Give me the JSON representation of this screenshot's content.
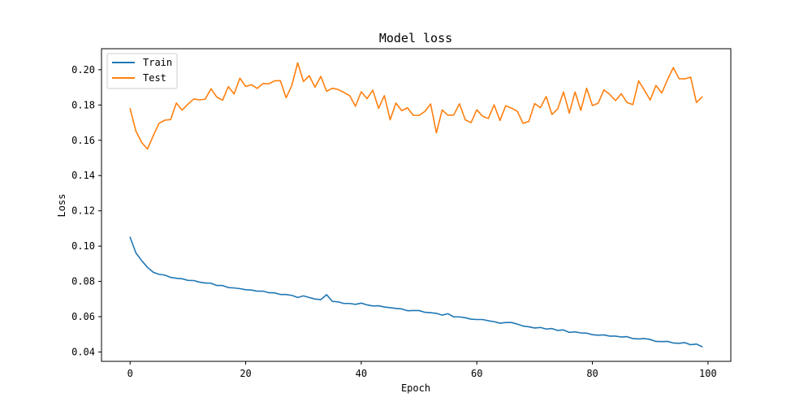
{
  "chart_data": {
    "type": "line",
    "title": "Model loss",
    "xlabel": "Epoch",
    "ylabel": "Loss",
    "xlim": [
      -4.95,
      103.95
    ],
    "ylim": [
      0.0347,
      0.2119
    ],
    "xticks": [
      0,
      20,
      40,
      60,
      80,
      100
    ],
    "xtick_labels": [
      "0",
      "20",
      "40",
      "60",
      "80",
      "100"
    ],
    "yticks": [
      0.04,
      0.06,
      0.08,
      0.1,
      0.12,
      0.14,
      0.16,
      0.18,
      0.2
    ],
    "ytick_labels": [
      "0.04",
      "0.06",
      "0.08",
      "0.10",
      "0.12",
      "0.14",
      "0.16",
      "0.18",
      "0.20"
    ],
    "grid": false,
    "legend_position": "top-left",
    "series": [
      {
        "name": "Train",
        "color": "#1f77b4",
        "values": [
          0.105,
          0.0962,
          0.0918,
          0.088,
          0.0852,
          0.084,
          0.0836,
          0.0823,
          0.0818,
          0.0815,
          0.0806,
          0.0805,
          0.0796,
          0.0791,
          0.079,
          0.0777,
          0.0777,
          0.0765,
          0.0763,
          0.0759,
          0.0753,
          0.0751,
          0.0745,
          0.0745,
          0.0736,
          0.0735,
          0.0726,
          0.0726,
          0.0721,
          0.0709,
          0.0718,
          0.0709,
          0.07,
          0.0697,
          0.0725,
          0.0687,
          0.0684,
          0.0675,
          0.0675,
          0.067,
          0.0677,
          0.0667,
          0.0661,
          0.0662,
          0.0655,
          0.0651,
          0.0647,
          0.0644,
          0.0634,
          0.0635,
          0.0635,
          0.0625,
          0.0623,
          0.0619,
          0.0609,
          0.0617,
          0.0599,
          0.0599,
          0.0594,
          0.0586,
          0.0584,
          0.0584,
          0.0577,
          0.0572,
          0.0563,
          0.0567,
          0.0567,
          0.0558,
          0.0547,
          0.0543,
          0.0536,
          0.0539,
          0.053,
          0.0533,
          0.0522,
          0.0525,
          0.0511,
          0.0514,
          0.0508,
          0.0507,
          0.0498,
          0.0495,
          0.0497,
          0.049,
          0.049,
          0.0485,
          0.0487,
          0.0476,
          0.0474,
          0.0476,
          0.0471,
          0.046,
          0.0459,
          0.046,
          0.0451,
          0.0449,
          0.0453,
          0.0441,
          0.0445,
          0.043
        ]
      },
      {
        "name": "Test",
        "color": "#ff7f0e",
        "values": [
          0.1779,
          0.1652,
          0.1588,
          0.155,
          0.1625,
          0.1696,
          0.1714,
          0.1717,
          0.1811,
          0.1771,
          0.1804,
          0.1834,
          0.1829,
          0.1833,
          0.1892,
          0.1845,
          0.1827,
          0.1904,
          0.1863,
          0.1952,
          0.1905,
          0.1915,
          0.1894,
          0.1922,
          0.192,
          0.1937,
          0.1938,
          0.1841,
          0.1912,
          0.2039,
          0.1933,
          0.1966,
          0.1901,
          0.1962,
          0.1878,
          0.1895,
          0.1888,
          0.1871,
          0.1853,
          0.1793,
          0.1875,
          0.1836,
          0.1884,
          0.1781,
          0.1853,
          0.1716,
          0.1811,
          0.1768,
          0.1784,
          0.1741,
          0.1741,
          0.1763,
          0.1806,
          0.1642,
          0.1772,
          0.1742,
          0.1743,
          0.1807,
          0.1716,
          0.17,
          0.1773,
          0.1736,
          0.1724,
          0.1801,
          0.1712,
          0.1796,
          0.1782,
          0.1765,
          0.1696,
          0.1707,
          0.1808,
          0.1785,
          0.1848,
          0.1746,
          0.1778,
          0.1874,
          0.1754,
          0.1874,
          0.1769,
          0.1895,
          0.1797,
          0.181,
          0.1886,
          0.186,
          0.1825,
          0.1864,
          0.1814,
          0.1802,
          0.1937,
          0.1884,
          0.1828,
          0.1911,
          0.1868,
          0.1944,
          0.2012,
          0.1949,
          0.1948,
          0.1958,
          0.1814,
          0.1846
        ]
      }
    ]
  }
}
